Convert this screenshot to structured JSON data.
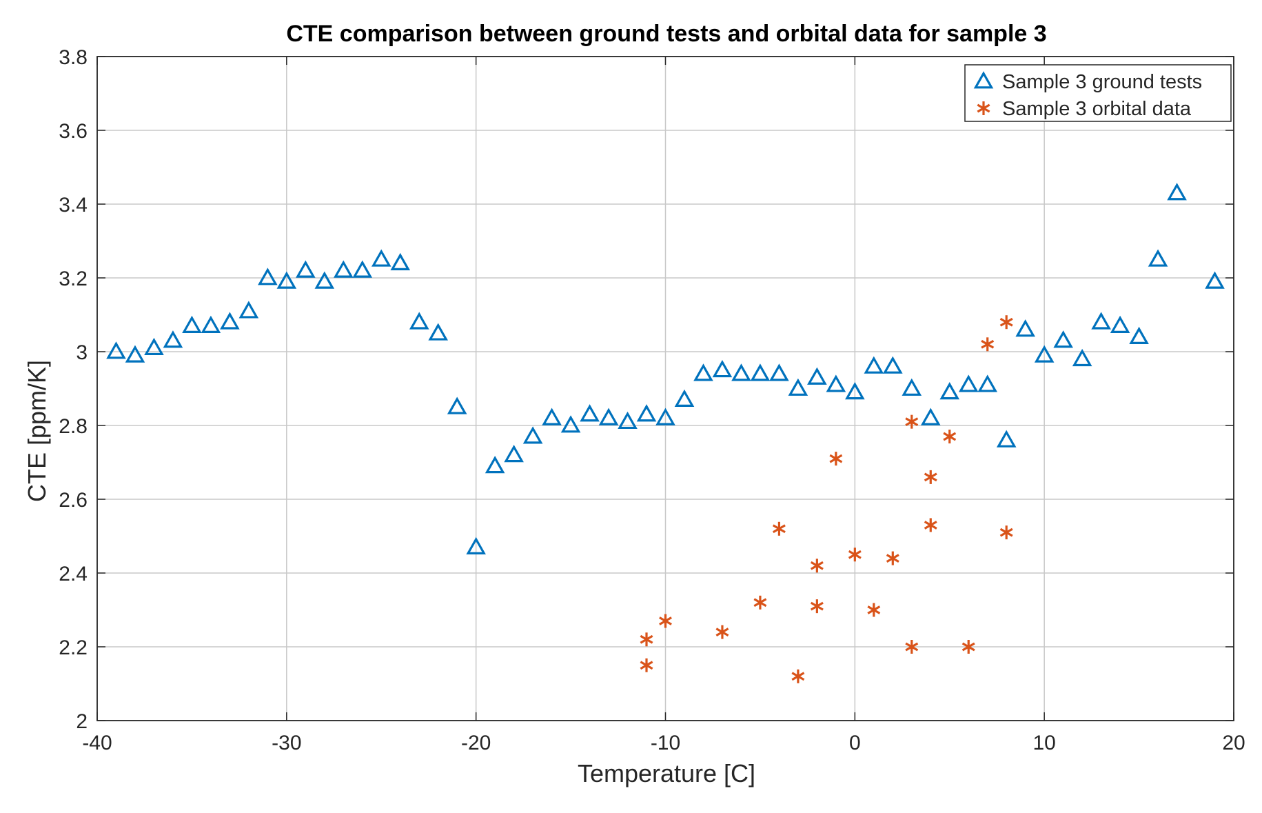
{
  "colors": {
    "ground": "#0072BD",
    "orbital": "#D95319",
    "grid": "#c8c8c8",
    "axis": "#262626"
  },
  "chart_data": {
    "type": "scatter",
    "title": "CTE comparison between ground tests and orbital data for sample 3",
    "xlabel": "Temperature [C]",
    "ylabel": "CTE [ppm/K]",
    "xlim": [
      -40,
      20
    ],
    "ylim": [
      2,
      3.8
    ],
    "xticks": [
      -40,
      -30,
      -20,
      -10,
      0,
      10,
      20
    ],
    "xtick_labels": [
      "-40",
      "-30",
      "-20",
      "-10",
      "0",
      "10",
      "20"
    ],
    "yticks": [
      2,
      2.2,
      2.4,
      2.6,
      2.8,
      3,
      3.2,
      3.4,
      3.6,
      3.8
    ],
    "ytick_labels": [
      "2",
      "2.2",
      "2.4",
      "2.6",
      "2.8",
      "3",
      "3.2",
      "3.4",
      "3.6",
      "3.8"
    ],
    "grid": true,
    "legend_position": "top-right",
    "series": [
      {
        "name": "Sample 3 ground tests",
        "marker": "triangle",
        "x": [
          -39,
          -38,
          -37,
          -36,
          -35,
          -34,
          -33,
          -32,
          -31,
          -30,
          -29,
          -28,
          -27,
          -26,
          -25,
          -24,
          -23,
          -22,
          -21,
          -20,
          -19,
          -18,
          -17,
          -16,
          -15,
          -14,
          -13,
          -12,
          -11,
          -10,
          -9,
          -8,
          -7,
          -6,
          -5,
          -4,
          -3,
          -2,
          -1,
          0,
          1,
          2,
          3,
          4,
          5,
          6,
          7,
          8,
          9,
          10,
          11,
          12,
          13,
          14,
          15,
          16,
          17,
          19
        ],
        "y": [
          3.0,
          2.99,
          3.01,
          3.03,
          3.07,
          3.07,
          3.08,
          3.11,
          3.2,
          3.19,
          3.22,
          3.19,
          3.22,
          3.22,
          3.25,
          3.24,
          3.08,
          3.05,
          2.85,
          2.47,
          2.69,
          2.72,
          2.77,
          2.82,
          2.8,
          2.83,
          2.82,
          2.81,
          2.83,
          2.82,
          2.87,
          2.94,
          2.95,
          2.94,
          2.94,
          2.94,
          2.9,
          2.93,
          2.91,
          2.89,
          2.96,
          2.96,
          2.9,
          2.82,
          2.89,
          2.91,
          2.91,
          2.76,
          3.06,
          2.99,
          3.03,
          2.98,
          3.08,
          3.07,
          3.04,
          3.25,
          3.43,
          3.19
        ]
      },
      {
        "name": "Sample 3 orbital data",
        "marker": "asterisk",
        "x": [
          -11,
          -11,
          -10,
          -7,
          -5,
          -4,
          -3,
          -2,
          -2,
          -1,
          0,
          1,
          2,
          3,
          3,
          4,
          4,
          5,
          6,
          7,
          8,
          8
        ],
        "y": [
          2.22,
          2.15,
          2.27,
          2.24,
          2.32,
          2.52,
          2.12,
          2.42,
          2.31,
          2.71,
          2.45,
          2.3,
          2.44,
          2.81,
          2.2,
          2.66,
          2.53,
          2.77,
          2.2,
          3.02,
          3.08,
          2.51
        ]
      }
    ]
  }
}
